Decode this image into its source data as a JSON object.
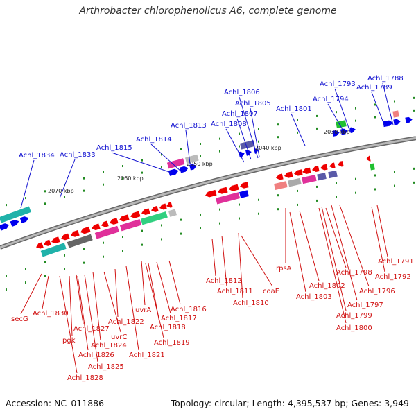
{
  "title": "Arthrobacter chlorophenolicus A6, complete genome",
  "footer": {
    "accession": "Accession: NC_011886",
    "summary": "Topology: circular; Length: 4,395,537 bp; Genes: 3,949"
  },
  "colors": {
    "forward_label": "#1010d0",
    "reverse_label": "#d01010",
    "forward_gene": "#0000ee",
    "reverse_gene": "#ee0000",
    "backbone": "#888888",
    "tick": "#228b22"
  },
  "kbp_labels": [
    "2030 kbp",
    "2040 kbp",
    "2050 kbp",
    "2060 kbp",
    "2070 kbp"
  ],
  "forward_genes": [
    "Achl_1834",
    "Achl_1833",
    "Achl_1815",
    "Achl_1814",
    "Achl_1813",
    "Achl_1808",
    "Achl_1807",
    "Achl_1806",
    "Achl_1805",
    "Achl_1801",
    "Achl_1794",
    "Achl_1793",
    "Achl_1789",
    "Achl_1788"
  ],
  "reverse_genes": [
    "secG",
    "Achl_1830",
    "pgk",
    "Achl_1827",
    "Achl_1826",
    "Achl_1828",
    "Achl_1825",
    "Achl_1824",
    "uvrC",
    "Achl_1822",
    "Achl_1821",
    "Achl_1819",
    "Achl_1818",
    "uvrA",
    "Achl_1817",
    "Achl_1816",
    "Achl_1812",
    "Achl_1811",
    "Achl_1810",
    "coaE",
    "rpsA",
    "Achl_1803",
    "Achl_1802",
    "Achl_1800",
    "Achl_1799",
    "Achl_1797",
    "Achl_1798",
    "Achl_1796",
    "Achl_1792",
    "Achl_1791"
  ]
}
